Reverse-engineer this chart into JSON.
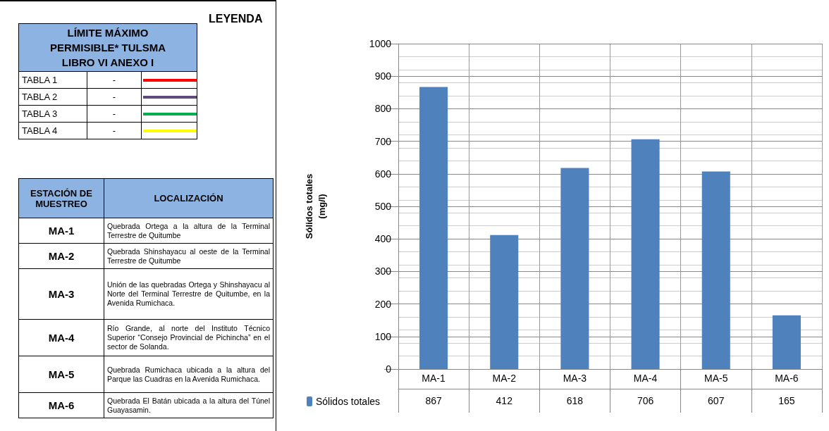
{
  "chart_data": {
    "type": "bar",
    "categories": [
      "MA-1",
      "MA-2",
      "MA-3",
      "MA-4",
      "MA-5",
      "MA-6"
    ],
    "series": [
      {
        "name": "Sólidos totales",
        "color": "#4f81bd",
        "values": [
          867,
          412,
          618,
          706,
          607,
          165
        ]
      }
    ],
    "ylabel": "Sólidos totales\n(mg/l)",
    "ylim": [
      0,
      1000
    ],
    "yticks": [
      0,
      100,
      200,
      300,
      400,
      500,
      600,
      700,
      800,
      900,
      1000
    ],
    "grid": true,
    "legend": "bottom",
    "data_labels": true,
    "annotations": [
      "LEYENDA",
      "LÍMITE MÁXIMO PERMISIBLE* TULSMA LIBRO VI ANEXO I",
      "TABLA 1",
      "-",
      "TABLA 2",
      "-",
      "TABLA 3",
      "-",
      "TABLA 4",
      "-",
      "ESTACIÓN DE MUESTREO",
      "LOCALIZACIÓN",
      "MA-1",
      "Quebrada Ortega a la altura de la Terminal Terrestre de Quitumbe",
      "MA-2",
      "Quebrada Shinshayacu al oeste de la Terminal Terrestre de Quitumbe",
      "MA-3",
      "Unión de las quebradas Ortega y Shinshayacu al Norte del Terminal Terrestre de Quitumbe, en la Avenida Rumichaca.",
      "MA-4",
      "Río Grande, al norte del Instituto Técnico Superior “Consejo Provincial de Pichincha” en el sector de Solanda.",
      "MA-5",
      "Quebrada Rumichaca ubicada a la altura del Parque las Cuadras en la Avenida Rumichaca.",
      "MA-6",
      "Quebrada El Batán ubicada a la altura del Túnel Guayasamin."
    ]
  }
}
